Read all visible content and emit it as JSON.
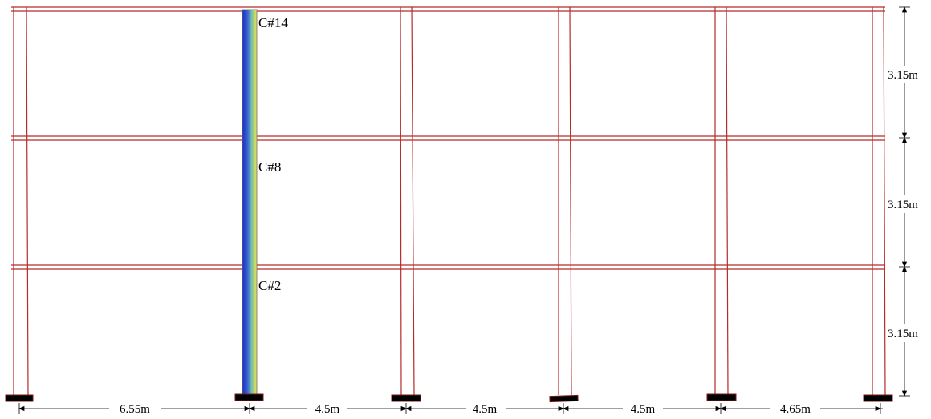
{
  "colors": {
    "frame_line": "#b52a2a",
    "dimension_line": "#000000",
    "support": "#000000",
    "support_edge": "#7a1a1a",
    "gradient_column": [
      "#2a36c8",
      "#3a6fd8",
      "#6fc0b0",
      "#f2e24a"
    ]
  },
  "column_labels": {
    "top": "C#14",
    "middle": "C#8",
    "bottom": "C#2"
  },
  "bay_widths": [
    "6.55m",
    "4.5m",
    "4.5m",
    "4.5m",
    "4.65m"
  ],
  "story_heights": [
    "3.15m",
    "3.15m",
    "3.15m"
  ]
}
